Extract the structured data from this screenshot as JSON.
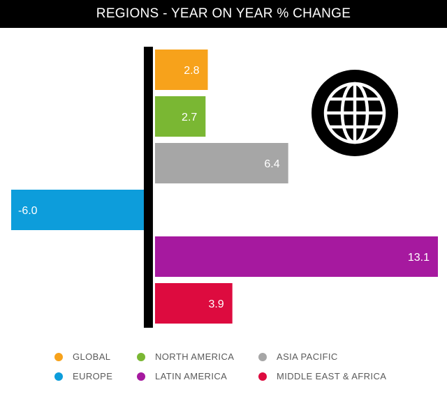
{
  "title": "REGIONS - YEAR ON YEAR % CHANGE",
  "colors": {
    "global": "#f7a21b",
    "north_america": "#7ab733",
    "asia_pacific": "#a6a6a6",
    "europe": "#0d9ddb",
    "latin_america": "#a6199f",
    "middle_east_africa": "#dd0b3f",
    "axis": "#000000",
    "label": "#ffffff"
  },
  "icon": "globe-icon",
  "chart_data": {
    "type": "bar",
    "orientation": "horizontal",
    "title": "REGIONS - YEAR ON YEAR % CHANGE",
    "categories": [
      "GLOBAL",
      "NORTH AMERICA",
      "ASIA PACIFIC",
      "EUROPE",
      "LATIN AMERICA",
      "MIDDLE EAST & AFRICA"
    ],
    "values": [
      2.8,
      2.7,
      6.4,
      -6.0,
      13.1,
      3.9
    ],
    "data_labels": [
      "2.8",
      "2.7",
      "6.4",
      "-6.0",
      "13.1",
      "3.9"
    ],
    "xlim": [
      -6.0,
      13.1
    ],
    "grid": false,
    "legend_position": "bottom"
  },
  "legend": [
    {
      "label": "GLOBAL",
      "color": "#f7a21b"
    },
    {
      "label": "NORTH AMERICA",
      "color": "#7ab733"
    },
    {
      "label": "ASIA PACIFIC",
      "color": "#a6a6a6"
    },
    {
      "label": "EUROPE",
      "color": "#0d9ddb"
    },
    {
      "label": "LATIN AMERICA",
      "color": "#a6199f"
    },
    {
      "label": "MIDDLE EAST & AFRICA",
      "color": "#dd0b3f"
    }
  ]
}
